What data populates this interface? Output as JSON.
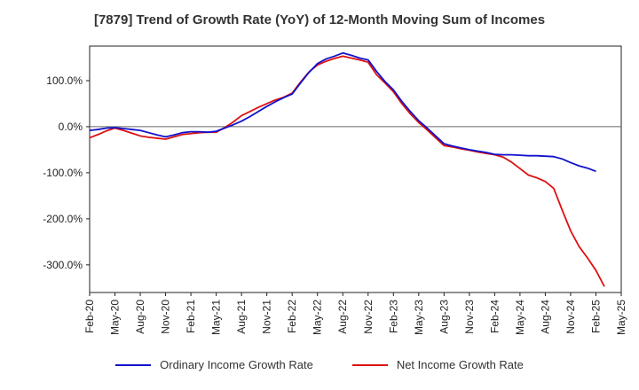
{
  "chart_data": {
    "type": "line",
    "title": "[7879]  Trend of Growth Rate (YoY) of 12-Month Moving Sum of Incomes",
    "xlabel": "",
    "ylabel": "",
    "ylim": [
      -360,
      175
    ],
    "y_ticks": [
      100,
      0,
      -100,
      -200,
      -300
    ],
    "y_tick_labels": [
      "100.0%",
      "0.0%",
      "-100.0%",
      "-200.0%",
      "-300.0%"
    ],
    "x_tick_labels": [
      "Feb-20",
      "May-20",
      "Aug-20",
      "Nov-20",
      "Feb-21",
      "May-21",
      "Aug-21",
      "Nov-21",
      "Feb-22",
      "May-22",
      "Aug-22",
      "Nov-22",
      "Feb-23",
      "May-23",
      "Aug-23",
      "Nov-23",
      "Feb-24",
      "May-24",
      "Aug-24",
      "Nov-24",
      "Feb-25",
      "May-25"
    ],
    "x": [
      "Feb-20",
      "Mar-20",
      "Apr-20",
      "May-20",
      "Jun-20",
      "Jul-20",
      "Aug-20",
      "Sep-20",
      "Oct-20",
      "Nov-20",
      "Dec-20",
      "Jan-21",
      "Feb-21",
      "Mar-21",
      "Apr-21",
      "May-21",
      "Jun-21",
      "Jul-21",
      "Aug-21",
      "Sep-21",
      "Oct-21",
      "Nov-21",
      "Dec-21",
      "Jan-22",
      "Feb-22",
      "Mar-22",
      "Apr-22",
      "May-22",
      "Jun-22",
      "Jul-22",
      "Aug-22",
      "Sep-22",
      "Oct-22",
      "Nov-22",
      "Dec-22",
      "Jan-23",
      "Feb-23",
      "Mar-23",
      "Apr-23",
      "May-23",
      "Jun-23",
      "Jul-23",
      "Aug-23",
      "Sep-23",
      "Oct-23",
      "Nov-23",
      "Dec-23",
      "Jan-24",
      "Feb-24",
      "Mar-24",
      "Apr-24",
      "May-24",
      "Jun-24",
      "Jul-24",
      "Aug-24",
      "Sep-24",
      "Oct-24",
      "Nov-24",
      "Dec-24",
      "Jan-25",
      "Feb-25",
      "Mar-25",
      "Apr-25",
      "May-25"
    ],
    "grid": true,
    "legend_position": "bottom",
    "series": [
      {
        "name": "Ordinary Income Growth Rate",
        "color": "#1111cc",
        "values": [
          -8,
          -6,
          -3,
          -2,
          -4,
          -6,
          -8,
          -13,
          -18,
          -22,
          -18,
          -13,
          -11,
          -11,
          -12,
          -10,
          -3,
          4,
          12,
          22,
          33,
          44,
          54,
          63,
          71,
          95,
          118,
          137,
          147,
          153,
          160,
          155,
          149,
          145,
          120,
          98,
          80,
          55,
          33,
          13,
          -3,
          -20,
          -37,
          -42,
          -46,
          -50,
          -53,
          -56,
          -60,
          -61,
          -61,
          -62,
          -63,
          -63,
          -64,
          -65,
          -70,
          -78,
          -85,
          -90,
          -97,
          null,
          null,
          null
        ]
      },
      {
        "name": "Net Income Growth Rate",
        "color": "#dd1111",
        "values": [
          -24,
          -17,
          -9,
          -3,
          -8,
          -14,
          -20,
          -23,
          -25,
          -27,
          -22,
          -17,
          -15,
          -13,
          -12,
          -12,
          -2,
          10,
          24,
          33,
          42,
          50,
          58,
          64,
          73,
          97,
          119,
          134,
          142,
          148,
          153,
          149,
          145,
          140,
          113,
          95,
          76,
          50,
          28,
          9,
          -7,
          -24,
          -41,
          -44,
          -48,
          -51,
          -55,
          -58,
          -61,
          -66,
          -77,
          -91,
          -105,
          -111,
          -119,
          -134,
          -181,
          -226,
          -260,
          -285,
          -312,
          -347,
          null,
          null
        ]
      }
    ]
  }
}
